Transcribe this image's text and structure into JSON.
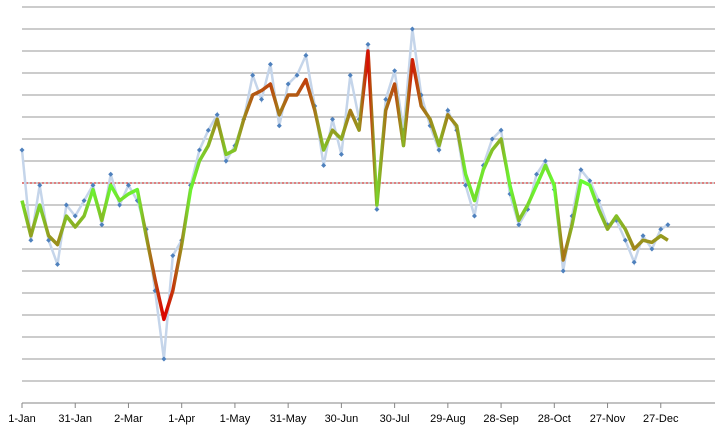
{
  "chart_data": {
    "type": "line",
    "x": [
      0,
      5,
      10,
      15,
      20,
      25,
      30,
      35,
      40,
      45,
      50,
      55,
      60,
      65,
      70,
      75,
      80,
      85,
      90,
      95,
      100,
      105,
      110,
      115,
      120,
      125,
      130,
      135,
      140,
      145,
      150,
      155,
      160,
      165,
      170,
      175,
      180,
      185,
      190,
      195,
      200,
      205,
      210,
      215,
      220,
      225,
      230,
      235,
      240,
      245,
      250,
      255,
      260,
      265,
      270,
      275,
      280,
      285,
      290,
      295,
      300,
      305,
      310,
      315,
      320,
      325,
      330,
      335,
      340,
      345,
      350,
      355,
      360,
      364
    ],
    "series": [
      {
        "color": "#c5d5ea",
        "marker_color": "#4f81bd",
        "values": [
          11.5,
          7.4,
          9.9,
          7.4,
          6.3,
          9.0,
          8.5,
          9.2,
          9.9,
          8.1,
          10.4,
          9.0,
          9.9,
          9.2,
          7.9,
          5.1,
          2.0,
          6.7,
          7.4,
          9.9,
          11.5,
          12.4,
          13.1,
          11.0,
          11.7,
          12.9,
          14.9,
          13.8,
          15.4,
          12.6,
          14.5,
          14.9,
          15.8,
          13.5,
          10.8,
          12.9,
          11.3,
          14.9,
          12.9,
          16.3,
          8.8,
          13.8,
          15.1,
          12.4,
          17.0,
          14.0,
          12.6,
          11.5,
          13.3,
          12.4,
          9.9,
          8.5,
          10.8,
          12.0,
          12.4,
          9.5,
          8.1,
          8.8,
          10.4,
          11.0,
          9.7,
          6.0,
          8.5,
          10.6,
          10.1,
          9.2,
          8.1,
          8.3,
          7.4,
          6.4,
          7.6,
          7.0,
          7.9,
          8.1
        ]
      },
      {
        "colors": [
          "#66ff33",
          "#dd0000"
        ],
        "values": [
          9.2,
          7.6,
          9.0,
          7.6,
          7.2,
          8.5,
          8.0,
          8.5,
          9.7,
          8.3,
          9.9,
          9.2,
          9.5,
          9.7,
          7.6,
          5.6,
          3.8,
          5.1,
          7.2,
          9.7,
          11.0,
          11.7,
          12.9,
          11.3,
          11.5,
          12.9,
          14.0,
          14.2,
          14.5,
          13.1,
          14.0,
          14.0,
          14.7,
          13.3,
          11.5,
          12.4,
          12.0,
          13.3,
          12.4,
          16.0,
          9.0,
          13.3,
          14.5,
          11.7,
          15.6,
          13.5,
          12.9,
          11.7,
          13.1,
          12.6,
          10.4,
          9.2,
          10.6,
          11.5,
          12.0,
          9.9,
          8.3,
          9.0,
          9.9,
          10.8,
          9.9,
          6.5,
          8.1,
          10.1,
          9.9,
          8.8,
          7.9,
          8.5,
          7.9,
          7.0,
          7.4,
          7.3,
          7.6,
          7.4
        ]
      }
    ],
    "reference_line": {
      "value": 10,
      "color": "#c00000"
    },
    "xlim": [
      0,
      390
    ],
    "xticks": [
      {
        "value": 0,
        "label": "1-Jan"
      },
      {
        "value": 30,
        "label": "31-Jan"
      },
      {
        "value": 60,
        "label": "2-Mar"
      },
      {
        "value": 90,
        "label": "1-Apr"
      },
      {
        "value": 120,
        "label": "1-May"
      },
      {
        "value": 150,
        "label": "31-May"
      },
      {
        "value": 180,
        "label": "30-Jun"
      },
      {
        "value": 210,
        "label": "30-Jul"
      },
      {
        "value": 240,
        "label": "29-Aug"
      },
      {
        "value": 270,
        "label": "28-Sep"
      },
      {
        "value": 300,
        "label": "28-Oct"
      },
      {
        "value": 330,
        "label": "27-Nov"
      },
      {
        "value": 360,
        "label": "27-Dec"
      }
    ],
    "ylim": [
      0,
      18
    ],
    "yticks": [
      0,
      1,
      2,
      3,
      4,
      5,
      6,
      7,
      8,
      9,
      10,
      11,
      12,
      13,
      14,
      15,
      16,
      17,
      18
    ],
    "grid": true
  }
}
